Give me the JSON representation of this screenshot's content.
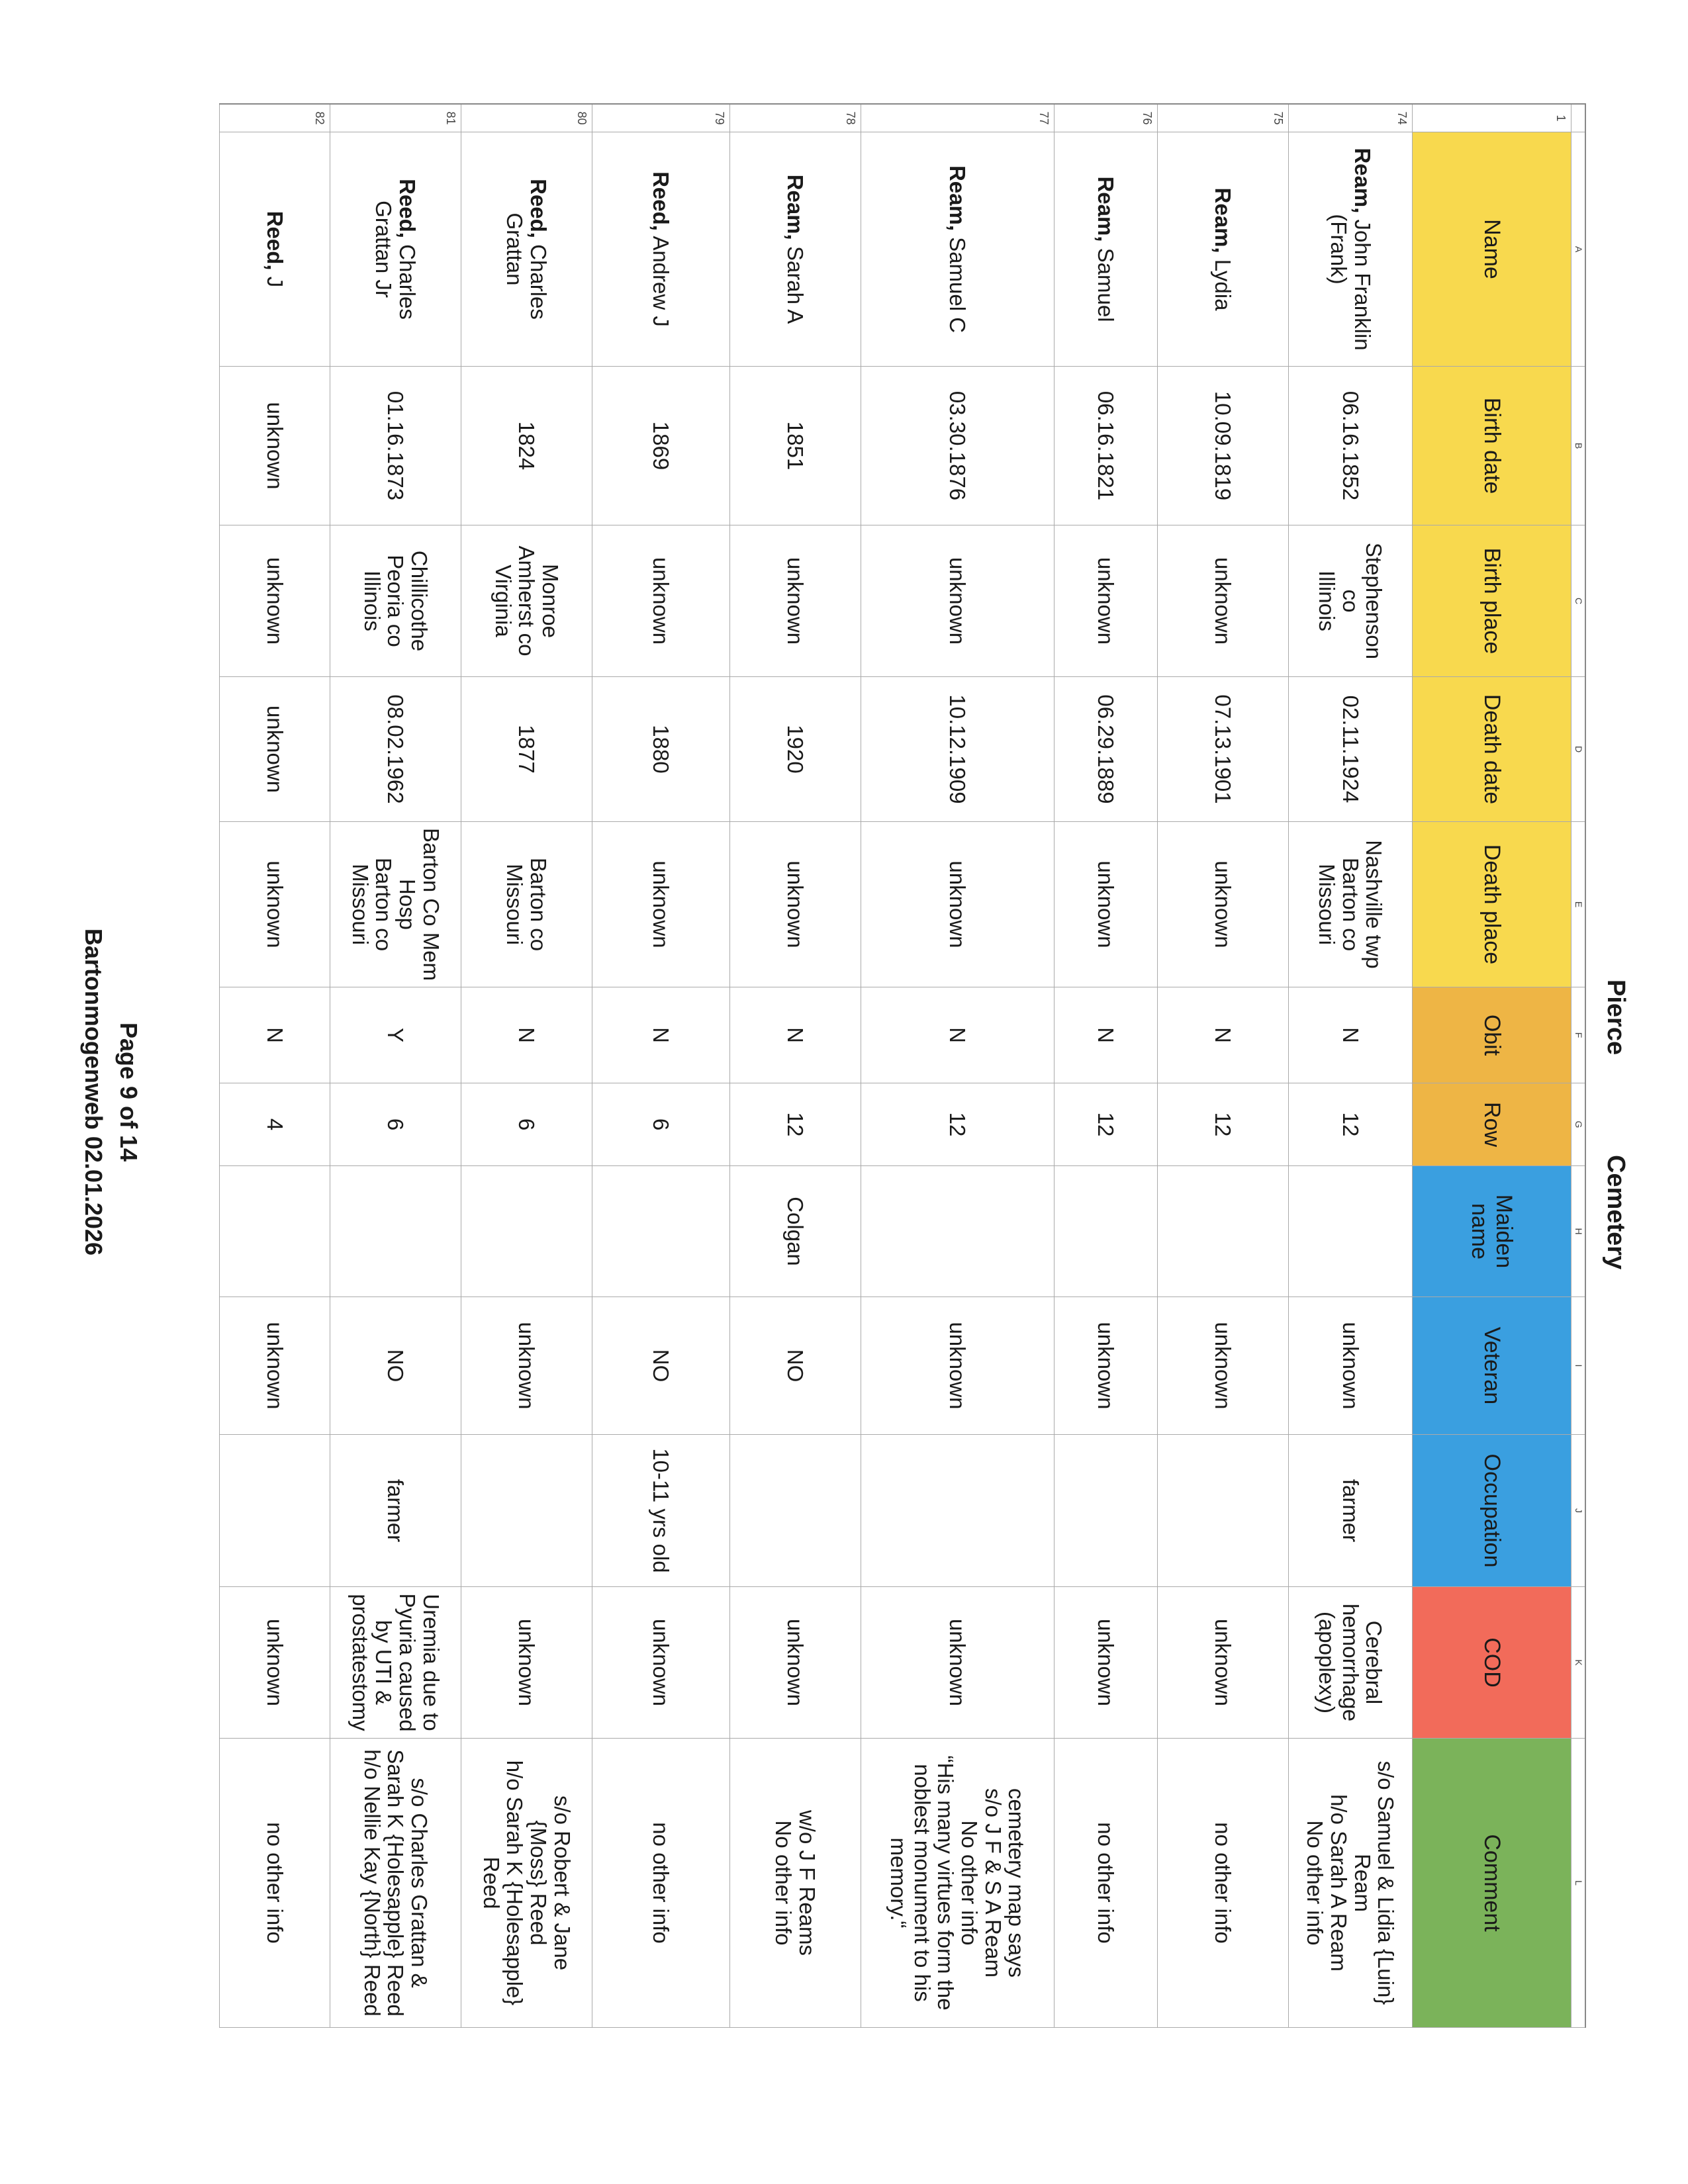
{
  "title": {
    "left": "Pierce",
    "right": "Cemetery"
  },
  "column_letters": [
    "A",
    "B",
    "C",
    "D",
    "E",
    "F",
    "G",
    "H",
    "I",
    "J",
    "K",
    "L"
  ],
  "header_row_number": "1",
  "headers": [
    {
      "label": "Name",
      "color": "#f8d94e"
    },
    {
      "label": "Birth date",
      "color": "#f8d94e"
    },
    {
      "label": "Birth place",
      "color": "#f8d94e"
    },
    {
      "label": "Death date",
      "color": "#f8d94e"
    },
    {
      "label": "Death place",
      "color": "#f8d94e"
    },
    {
      "label": "Obit",
      "color": "#eeb545"
    },
    {
      "label": "Row",
      "color": "#eeb545"
    },
    {
      "label": "Maiden\nname",
      "color": "#3a9fe0"
    },
    {
      "label": "Veteran",
      "color": "#3a9fe0"
    },
    {
      "label": "Occupation",
      "color": "#3a9fe0"
    },
    {
      "label": "COD",
      "color": "#f26b5a"
    },
    {
      "label": "Comment",
      "color": "#7bb35a"
    }
  ],
  "rows": [
    {
      "num": "74",
      "surname": "Ream,",
      "given": " John Franklin\n(Frank)",
      "cells": [
        "06.16.1852",
        "Stephenson\nco\nIllinois",
        "02.11.1924",
        "Nashville twp\nBarton co\nMissouri",
        "N",
        "12",
        "",
        "unknown",
        "farmer",
        "Cerebral\nhemorrhage\n(apoplexy)",
        "s/o Samuel & Lidia {Luin}\nReam\nh/o Sarah A Ream\nNo other info"
      ]
    },
    {
      "num": "75",
      "surname": "Ream,",
      "given": " Lydia",
      "cells": [
        "10.09.1819",
        "unknown",
        "07.13.1901",
        "unknown",
        "N",
        "12",
        "",
        "unknown",
        "",
        "unknown",
        "no other info"
      ]
    },
    {
      "num": "76",
      "surname": "Ream,",
      "given": " Samuel",
      "cells": [
        "06.16.1821",
        "unknown",
        "06.29.1889",
        "unknown",
        "N",
        "12",
        "",
        "unknown",
        "",
        "unknown",
        "no other info"
      ]
    },
    {
      "num": "77",
      "surname": "Ream,",
      "given": " Samuel C",
      "cells": [
        "03.30.1876",
        "unknown",
        "10.12.1909",
        "unknown",
        "N",
        "12",
        "",
        "unknown",
        "",
        "unknown",
        "cemetery map says\ns/o J F & S A Ream\nNo other info\n“His many virtues form the\nnoblest monument to his\nmemory.“"
      ]
    },
    {
      "num": "78",
      "surname": "Ream,",
      "given": " Sarah A",
      "cells": [
        "1851",
        "unknown",
        "1920",
        "unknown",
        "N",
        "12",
        "Colgan",
        "NO",
        "",
        "unknown",
        "w/o J F Reams\nNo other info"
      ]
    },
    {
      "num": "79",
      "surname": "Reed,",
      "given": " Andrew J",
      "cells": [
        "1869",
        "unknown",
        "1880",
        "unknown",
        "N",
        "6",
        "",
        "NO",
        "10-11 yrs old",
        "unknown",
        "no other info"
      ]
    },
    {
      "num": "80",
      "surname": "Reed,",
      "given": " Charles\nGrattan",
      "cells": [
        "1824",
        "Monroe\nAmherst co\nVirginia",
        "1877",
        "Barton co\nMissouri",
        "N",
        "6",
        "",
        "unknown",
        "",
        "unknown",
        "s/o Robert & Jane\n{Moss} Reed\nh/o Sarah K {Holesapple}\nReed"
      ]
    },
    {
      "num": "81",
      "surname": "Reed,",
      "given": " Charles\nGrattan Jr",
      "cells": [
        "01.16.1873",
        "Chillicothe\nPeoria co\nIllinois",
        "08.02.1962",
        "Barton Co Mem\nHosp\nBarton co\nMissouri",
        "Y",
        "6",
        "",
        "NO",
        "farmer",
        "Uremia due to\nPyuria caused\nby UTI &\nprostatestomy",
        "s/o Charles Grattan &\nSarah K {Holesapple} Reed\nh/o Nellie Kay {North} Reed"
      ]
    },
    {
      "num": "82",
      "surname": "Reed,",
      "given": " J",
      "cells": [
        "unknown",
        "unknown",
        "unknown",
        "unknown",
        "N",
        "4",
        "",
        "unknown",
        "",
        "unknown",
        "no other info"
      ]
    }
  ],
  "footer": {
    "page": "Page 9 of 14",
    "source": "Bartonmogenweb 02.01.2026"
  }
}
